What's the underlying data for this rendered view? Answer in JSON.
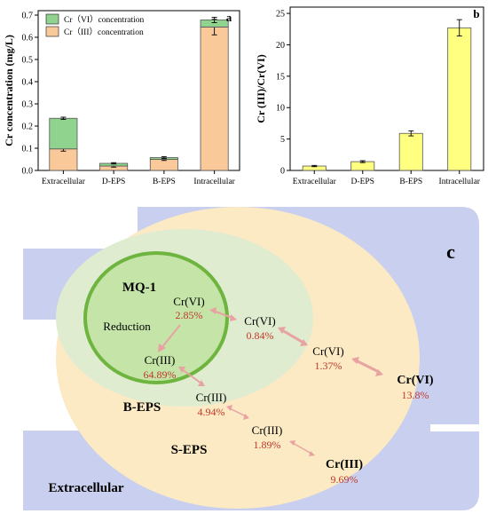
{
  "chart_data": [
    {
      "panel": "a",
      "type": "bar",
      "stacked": true,
      "ylabel": "Cr concentration (mg/L)",
      "ylim": [
        0,
        0.72
      ],
      "yticks": [
        "0.0",
        "0.1",
        "0.2",
        "0.3",
        "0.4",
        "0.5",
        "0.6",
        "0.7"
      ],
      "categories": [
        "Extracellular",
        "D-EPS",
        "B-EPS",
        "Intracellular"
      ],
      "series": [
        {
          "name": "Cr（III）concentration",
          "color": "#f9c99a",
          "values": [
            0.097,
            0.02,
            0.05,
            0.646
          ],
          "errors": [
            0.01,
            0.005,
            0.005,
            0.035
          ]
        },
        {
          "name": "Cr（VI）concentration",
          "color": "#8fd38f",
          "values": [
            0.138,
            0.012,
            0.008,
            0.032
          ],
          "errors": [
            0.005,
            0.003,
            0.004,
            0.012
          ]
        }
      ],
      "legend_position": "top-left"
    },
    {
      "panel": "b",
      "type": "bar",
      "ylabel": "Cr (III)/Cr(VI)",
      "ylim": [
        0,
        26
      ],
      "yticks": [
        "0",
        "5",
        "10",
        "15",
        "20",
        "25"
      ],
      "categories": [
        "Extracellular",
        "D-EPS",
        "B-EPS",
        "Intracellular"
      ],
      "series": [
        {
          "color": "#ffff80",
          "values": [
            0.7,
            1.4,
            5.9,
            22.7
          ],
          "errors": [
            0.1,
            0.15,
            0.4,
            1.3
          ]
        }
      ]
    }
  ],
  "panel_c": {
    "label": "c",
    "regions": {
      "mq1": "MQ-1",
      "reduction": "Reduction",
      "beps": "B-EPS",
      "seps": "S-EPS",
      "extracellular": "Extracellular"
    },
    "species": [
      {
        "name": "Cr(VI)",
        "pct": "2.85%"
      },
      {
        "name": "Cr(III)",
        "pct": "64.89%"
      },
      {
        "name": "Cr(VI)",
        "pct": "0.84%"
      },
      {
        "name": "Cr(III)",
        "pct": "4.94%"
      },
      {
        "name": "Cr(VI)",
        "pct": "1.37%"
      },
      {
        "name": "Cr(III)",
        "pct": "1.89%"
      },
      {
        "name": "Cr(VI)",
        "pct": "13.8%"
      },
      {
        "name": "Cr(III)",
        "pct": "9.69%"
      }
    ],
    "colors": {
      "stripe": "#c9cfee",
      "seps": "#fbeac4",
      "beps": "#dfeccf",
      "mq1_fill": "#c4e4a8",
      "mq1_ring": "#6db53e",
      "arrow": "#e8a2a2",
      "percent": "#c0392b"
    }
  }
}
